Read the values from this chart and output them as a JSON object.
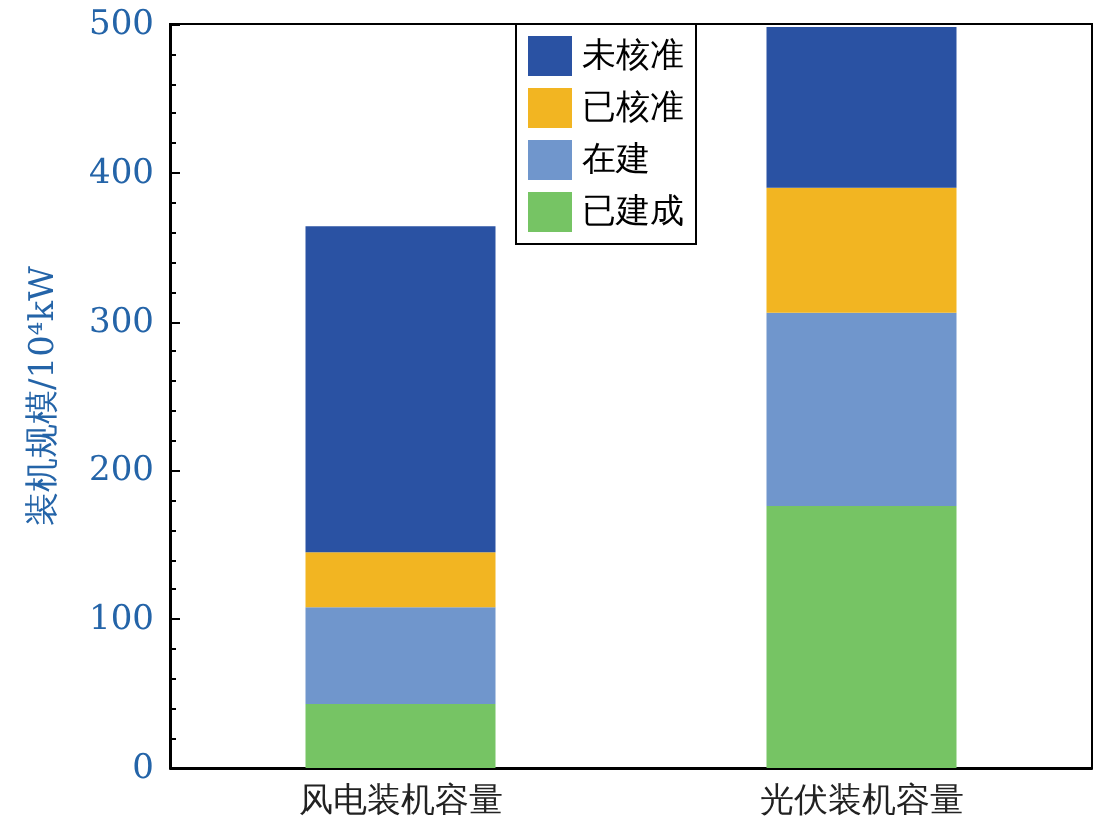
{
  "chart_data": {
    "type": "bar",
    "stacked": true,
    "ylabel": "装机规模/10⁴kW",
    "categories": [
      "风电装机容量",
      "光伏装机容量"
    ],
    "series": [
      {
        "name": "已建成",
        "color": "#76c464",
        "values": [
          43,
          176
        ]
      },
      {
        "name": "在建",
        "color": "#7096cc",
        "values": [
          65,
          130
        ]
      },
      {
        "name": "已核准",
        "color": "#f2b522",
        "values": [
          37,
          84
        ]
      },
      {
        "name": "未核准",
        "color": "#2a52a3",
        "values": [
          219,
          108
        ]
      }
    ],
    "ylim": [
      0,
      500
    ],
    "yticks": [
      0,
      100,
      200,
      300,
      400,
      500
    ],
    "grid": false,
    "legend": "top"
  }
}
